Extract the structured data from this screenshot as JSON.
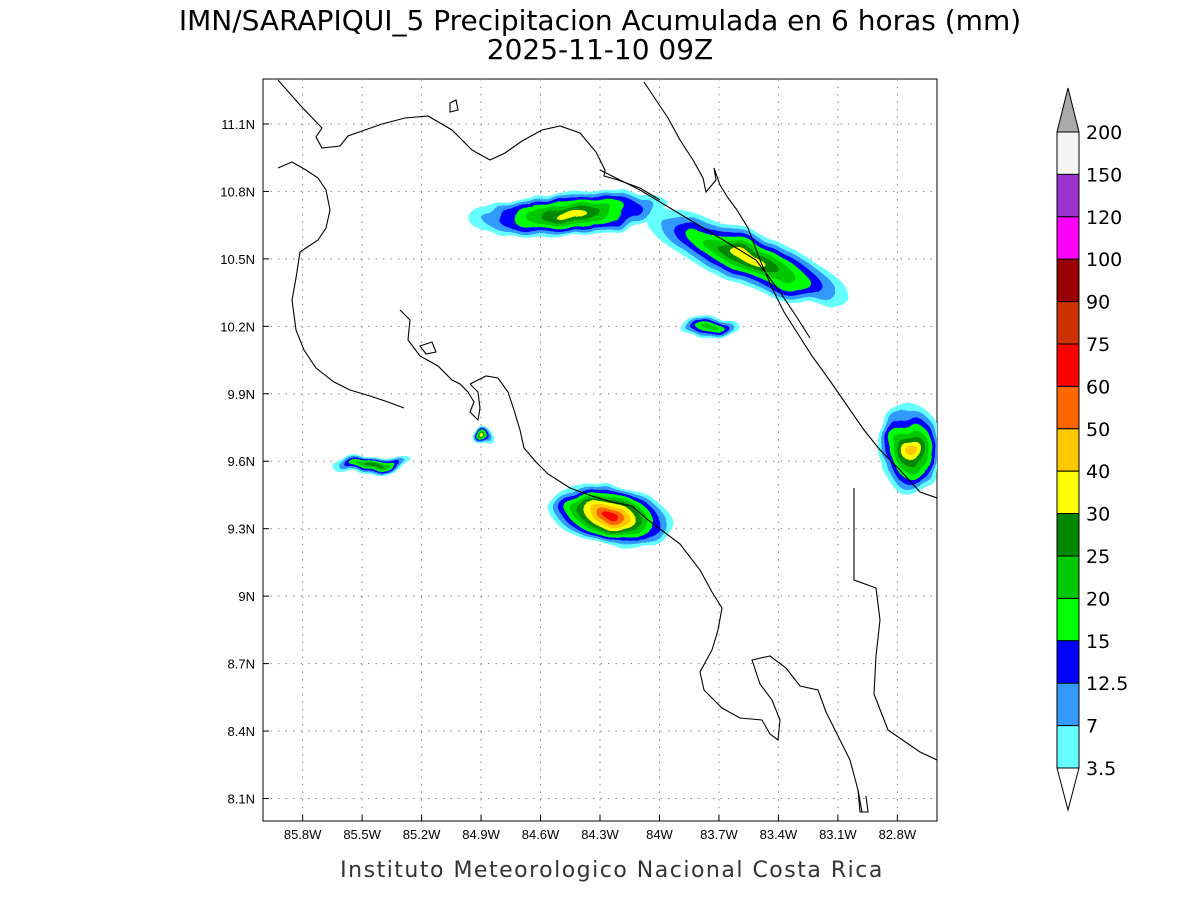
{
  "title": {
    "line1": "IMN/SARAPIQUI_5 Precipitacion Acumulada en 6 horas (mm)",
    "line2": "2025-11-10 09Z"
  },
  "credit": "Instituto Meteorologico Nacional Costa Rica",
  "map": {
    "lon_range": [
      -86.0,
      -82.6
    ],
    "lat_range": [
      8.0,
      11.3
    ],
    "x_ticks": [
      {
        "value": -85.8,
        "label": "85.8W"
      },
      {
        "value": -85.5,
        "label": "85.5W"
      },
      {
        "value": -85.2,
        "label": "85.2W"
      },
      {
        "value": -84.9,
        "label": "84.9W"
      },
      {
        "value": -84.6,
        "label": "84.6W"
      },
      {
        "value": -84.3,
        "label": "84.3W"
      },
      {
        "value": -84.0,
        "label": "84W"
      },
      {
        "value": -83.7,
        "label": "83.7W"
      },
      {
        "value": -83.4,
        "label": "83.4W"
      },
      {
        "value": -83.1,
        "label": "83.1W"
      },
      {
        "value": -82.8,
        "label": "82.8W"
      }
    ],
    "y_ticks": [
      {
        "value": 11.1,
        "label": "11.1N"
      },
      {
        "value": 10.8,
        "label": "10.8N"
      },
      {
        "value": 10.5,
        "label": "10.5N"
      },
      {
        "value": 10.2,
        "label": "10.2N"
      },
      {
        "value": 9.9,
        "label": "9.9N"
      },
      {
        "value": 9.6,
        "label": "9.6N"
      },
      {
        "value": 9.3,
        "label": "9.3N"
      },
      {
        "value": 9.0,
        "label": "9N"
      },
      {
        "value": 8.7,
        "label": "8.7N"
      },
      {
        "value": 8.4,
        "label": "8.4N"
      },
      {
        "value": 8.1,
        "label": "8.1N"
      }
    ],
    "grid": "dotted"
  },
  "legend": {
    "placement": "right",
    "levels": [
      {
        "label": "3.5",
        "color": "#66ffff"
      },
      {
        "label": "7",
        "color": "#3399ff"
      },
      {
        "label": "12.5",
        "color": "#0000ff"
      },
      {
        "label": "15",
        "color": "#00ff00"
      },
      {
        "label": "20",
        "color": "#00c800"
      },
      {
        "label": "25",
        "color": "#008800"
      },
      {
        "label": "30",
        "color": "#ffff00"
      },
      {
        "label": "40",
        "color": "#ffc800"
      },
      {
        "label": "50",
        "color": "#ff6600"
      },
      {
        "label": "60",
        "color": "#ff0000"
      },
      {
        "label": "75",
        "color": "#cc3300"
      },
      {
        "label": "90",
        "color": "#990000"
      },
      {
        "label": "100",
        "color": "#ff00ff"
      },
      {
        "label": "120",
        "color": "#9933cc"
      },
      {
        "label": "150",
        "color": "#f5f5f5"
      },
      {
        "label": "200",
        "color": "#aaaaaa"
      }
    ]
  },
  "precip_areas": [
    {
      "name": "northern-plains-band",
      "lon": -84.45,
      "lat": 10.7,
      "rx": 0.5,
      "ry": 0.1,
      "rot": -5,
      "max_level": 6
    },
    {
      "name": "caribbean-slope-band",
      "lon": -83.55,
      "lat": 10.5,
      "rx": 0.55,
      "ry": 0.12,
      "rot": 22,
      "max_level": 6
    },
    {
      "name": "central-pacific-cell",
      "lon": -84.25,
      "lat": 9.36,
      "rx": 0.32,
      "ry": 0.14,
      "rot": 12,
      "max_level": 9
    },
    {
      "name": "caribbean-south-cell",
      "lon": -82.73,
      "lat": 9.65,
      "rx": 0.16,
      "ry": 0.2,
      "rot": 0,
      "max_level": 7
    },
    {
      "name": "nicoya-cell",
      "lon": -85.45,
      "lat": 9.59,
      "rx": 0.2,
      "ry": 0.04,
      "rot": -5,
      "max_level": 5
    },
    {
      "name": "gulf-cell",
      "lon": -84.88,
      "lat": 9.7,
      "rx": 0.05,
      "ry": 0.04,
      "rot": 0,
      "max_level": 6
    },
    {
      "name": "northern-east-cell",
      "lon": -83.75,
      "lat": 10.2,
      "rx": 0.15,
      "ry": 0.05,
      "rot": 0,
      "max_level": 4
    }
  ]
}
